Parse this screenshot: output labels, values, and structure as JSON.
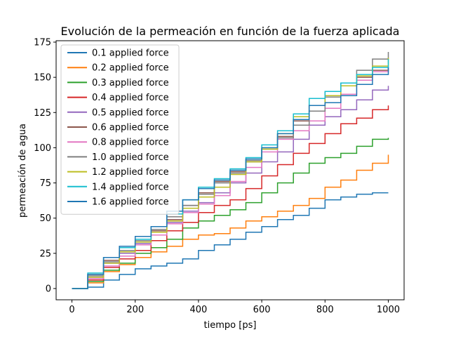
{
  "chart_data": {
    "type": "line",
    "title": "Evolución de la permeación en función de la fuerza aplicada",
    "xlabel": "tiempo [ps]",
    "ylabel": "permeación de agua",
    "xlim": [
      -50,
      1050
    ],
    "ylim": [
      -8,
      176
    ],
    "xticks": [
      0,
      200,
      400,
      600,
      800,
      1000
    ],
    "yticks": [
      0,
      25,
      50,
      75,
      100,
      125,
      150,
      175
    ],
    "legend_position": "upper left",
    "grid": false,
    "series": [
      {
        "name": "0.1 applied force",
        "color": "#1f77b4",
        "x": [
          0,
          50,
          100,
          150,
          200,
          250,
          300,
          350,
          400,
          450,
          500,
          550,
          600,
          650,
          700,
          750,
          800,
          850,
          900,
          950,
          1000
        ],
        "y": [
          0,
          1,
          6,
          10,
          14,
          16,
          18,
          21,
          27,
          31,
          35,
          40,
          44,
          49,
          52,
          57,
          63,
          65,
          67,
          68,
          68
        ]
      },
      {
        "name": "0.2 applied force",
        "color": "#ff7f0e",
        "x": [
          0,
          50,
          100,
          150,
          200,
          250,
          300,
          350,
          400,
          450,
          500,
          550,
          600,
          650,
          700,
          750,
          800,
          850,
          900,
          950,
          1000
        ],
        "y": [
          0,
          4,
          12,
          17,
          22,
          26,
          30,
          35,
          38,
          39,
          43,
          48,
          51,
          55,
          59,
          64,
          72,
          77,
          84,
          89,
          95
        ]
      },
      {
        "name": "0.3 applied force",
        "color": "#2ca02c",
        "x": [
          0,
          50,
          100,
          150,
          200,
          250,
          300,
          350,
          400,
          450,
          500,
          550,
          600,
          650,
          700,
          750,
          800,
          850,
          900,
          950,
          1000
        ],
        "y": [
          0,
          5,
          13,
          18,
          25,
          29,
          35,
          43,
          48,
          52,
          56,
          61,
          68,
          75,
          82,
          89,
          93,
          96,
          101,
          106,
          107
        ]
      },
      {
        "name": "0.4 applied force",
        "color": "#d62728",
        "x": [
          0,
          50,
          100,
          150,
          200,
          250,
          300,
          350,
          400,
          450,
          500,
          550,
          600,
          650,
          700,
          750,
          800,
          850,
          900,
          950,
          1000
        ],
        "y": [
          0,
          6,
          15,
          21,
          27,
          34,
          41,
          47,
          54,
          59,
          63,
          71,
          80,
          88,
          96,
          103,
          110,
          117,
          121,
          127,
          130
        ]
      },
      {
        "name": "0.5 applied force",
        "color": "#9467bd",
        "x": [
          0,
          50,
          100,
          150,
          200,
          250,
          300,
          350,
          400,
          450,
          500,
          550,
          600,
          650,
          700,
          750,
          800,
          850,
          900,
          950,
          1000
        ],
        "y": [
          0,
          8,
          18,
          25,
          32,
          40,
          47,
          55,
          61,
          68,
          75,
          82,
          90,
          97,
          106,
          116,
          122,
          127,
          134,
          141,
          144
        ]
      },
      {
        "name": "0.6 applied force",
        "color": "#8c564b",
        "x": [
          0,
          50,
          100,
          150,
          200,
          250,
          300,
          350,
          400,
          450,
          500,
          550,
          600,
          650,
          700,
          750,
          800,
          850,
          900,
          950,
          1000
        ],
        "y": [
          0,
          10,
          20,
          26,
          33,
          41,
          49,
          59,
          68,
          76,
          83,
          90,
          99,
          108,
          119,
          130,
          140,
          146,
          150,
          155,
          157
        ]
      },
      {
        "name": "0.8 applied force",
        "color": "#e377c2",
        "x": [
          0,
          50,
          100,
          150,
          200,
          250,
          300,
          350,
          400,
          450,
          500,
          550,
          600,
          650,
          700,
          750,
          800,
          850,
          900,
          950,
          1000
        ],
        "y": [
          0,
          7,
          16,
          23,
          31,
          38,
          46,
          54,
          60,
          66,
          76,
          86,
          97,
          106,
          112,
          119,
          128,
          138,
          148,
          154,
          158
        ]
      },
      {
        "name": "1.0 applied force",
        "color": "#7f7f7f",
        "x": [
          0,
          50,
          100,
          150,
          200,
          250,
          300,
          350,
          400,
          450,
          500,
          550,
          600,
          650,
          700,
          750,
          800,
          850,
          900,
          950,
          1000
        ],
        "y": [
          0,
          9,
          19,
          27,
          34,
          42,
          51,
          59,
          67,
          75,
          82,
          91,
          99,
          107,
          116,
          126,
          136,
          146,
          155,
          163,
          168
        ]
      },
      {
        "name": "1.2 applied force",
        "color": "#bcbd22",
        "x": [
          0,
          50,
          100,
          150,
          200,
          250,
          300,
          350,
          400,
          450,
          500,
          550,
          600,
          650,
          700,
          750,
          800,
          850,
          900,
          950,
          1000
        ],
        "y": [
          0,
          8,
          18,
          26,
          33,
          40,
          48,
          57,
          65,
          72,
          81,
          90,
          99,
          110,
          122,
          130,
          137,
          144,
          151,
          158,
          164
        ]
      },
      {
        "name": "1.4 applied force",
        "color": "#17becf",
        "x": [
          0,
          50,
          100,
          150,
          200,
          250,
          300,
          350,
          400,
          450,
          500,
          550,
          600,
          650,
          700,
          750,
          800,
          850,
          900,
          950,
          1000
        ],
        "y": [
          0,
          11,
          22,
          29,
          35,
          44,
          53,
          63,
          72,
          78,
          85,
          93,
          102,
          112,
          124,
          135,
          140,
          146,
          152,
          157,
          163
        ]
      },
      {
        "name": "1.6 applied force",
        "color": "#1f77b4",
        "x": [
          0,
          50,
          100,
          150,
          200,
          250,
          300,
          350,
          400,
          450,
          500,
          550,
          600,
          650,
          700,
          750,
          800,
          850,
          900,
          950,
          1000
        ],
        "y": [
          0,
          10,
          22,
          30,
          37,
          44,
          55,
          63,
          71,
          77,
          84,
          92,
          100,
          110,
          120,
          130,
          132,
          137,
          145,
          152,
          157
        ]
      }
    ]
  }
}
